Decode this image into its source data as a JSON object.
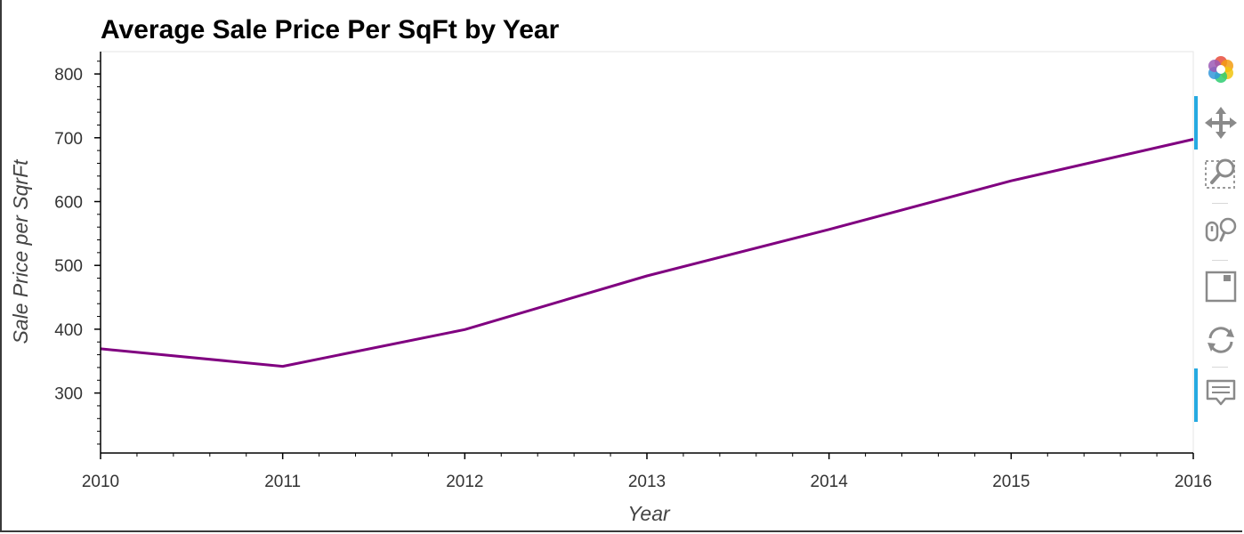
{
  "chart_data": {
    "type": "line",
    "title": "Average Sale Price Per SqFt by Year",
    "xlabel": "Year",
    "ylabel": "Sale Price per SqrFt",
    "x": [
      2010,
      2011,
      2012,
      2013,
      2014,
      2015,
      2016
    ],
    "series": [
      {
        "values": [
          369.3,
          341.9,
          399.4,
          483.6,
          556.3,
          632.5,
          697.6
        ],
        "color": "#800080"
      }
    ],
    "xlim": [
      2010,
      2016
    ],
    "ylim": [
      206,
      835
    ],
    "x_ticks": [
      "2010",
      "2011",
      "2012",
      "2013",
      "2014",
      "2015",
      "2016"
    ],
    "y_ticks": [
      "300",
      "400",
      "500",
      "600",
      "700",
      "800"
    ],
    "grid": false,
    "legend": "none"
  },
  "toolbar": {
    "tools": [
      {
        "icon": "bokeh-logo-icon",
        "active": false
      },
      {
        "icon": "pan-move-icon",
        "active": true
      },
      {
        "icon": "box-zoom-icon",
        "active": false
      },
      {
        "icon": "wheel-zoom-icon",
        "active": false
      },
      {
        "icon": "save-icon",
        "active": false
      },
      {
        "icon": "reset-icon",
        "active": false
      },
      {
        "icon": "hover-tooltip-icon",
        "active": true
      }
    ],
    "accent_color": "#26aae1"
  }
}
